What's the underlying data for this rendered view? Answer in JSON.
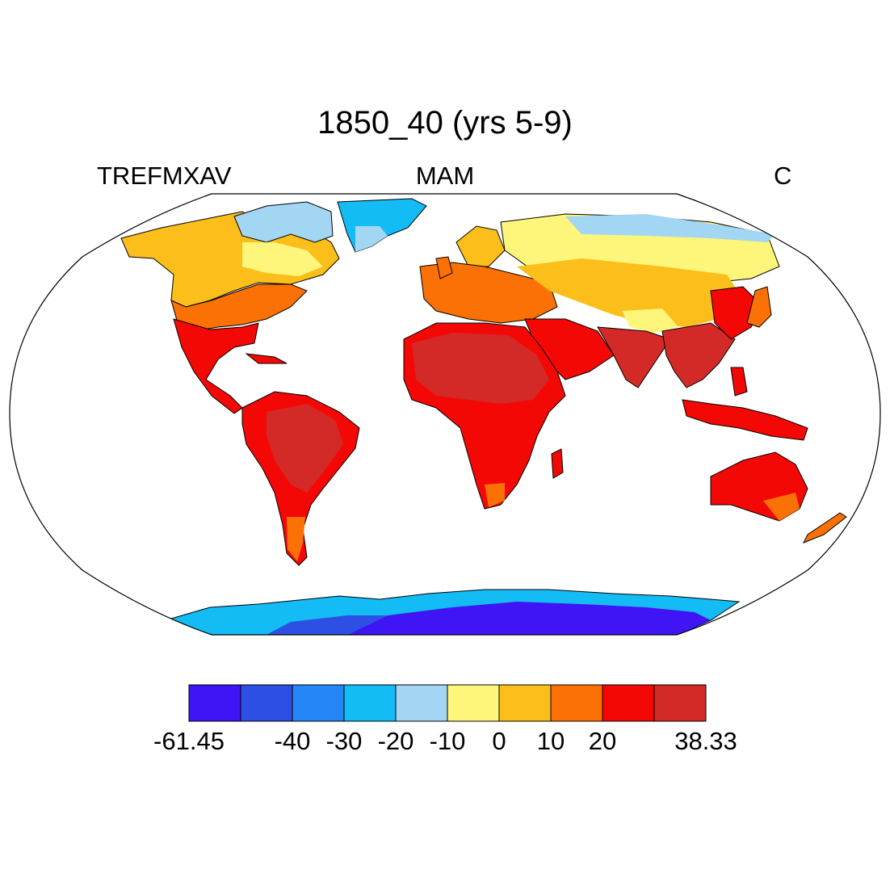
{
  "title": "1850_40 (yrs 5-9)",
  "subtitle_left": "TREFMXAV",
  "subtitle_center": "MAM",
  "subtitle_right": "C",
  "colorbar": {
    "colors": [
      "#3f14f5",
      "#2d4fe3",
      "#2586f8",
      "#13bcf5",
      "#a3d6f3",
      "#fef67a",
      "#fcbe1a",
      "#fb7105",
      "#f40805",
      "#d32a28"
    ],
    "labels": [
      "-61.45",
      "-40",
      "-30",
      "-20",
      "-10",
      "0",
      "10",
      "20",
      "38.33"
    ],
    "label_boundaries": [
      0,
      2,
      3,
      4,
      5,
      6,
      7,
      8,
      10
    ]
  },
  "map": {
    "projection": "robinson",
    "land_colors": {
      "ice_deep": "#3f14f5",
      "ice_mid": "#2d4fe3",
      "ice_light": "#2586f8",
      "cold": "#13bcf5",
      "cool": "#a3d6f3",
      "mild": "#fef67a",
      "warm": "#fcbe1a",
      "warmer": "#fb7105",
      "hot": "#f40805",
      "hottest": "#d32a28"
    }
  }
}
